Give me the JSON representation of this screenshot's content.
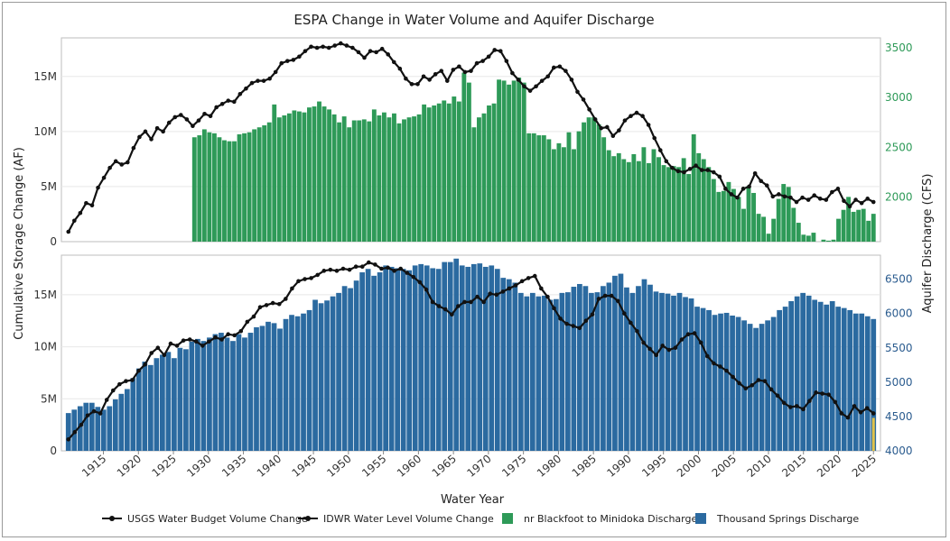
{
  "chart_data": {
    "type": "bar",
    "title": "ESPA Change in Water Volume and Aquifer Discharge",
    "xlabel": "Water Year",
    "ylabel_left": "Cumulative Storage Change (AF)",
    "ylabel_right": "Aquifer Discharge (CFS)",
    "x_tick_labels": [
      "1915",
      "1920",
      "1925",
      "1930",
      "1935",
      "1940",
      "1945",
      "1950",
      "1955",
      "1960",
      "1965",
      "1970",
      "1975",
      "1980",
      "1985",
      "1990",
      "1995",
      "2000",
      "2005",
      "2010",
      "2015",
      "2020",
      "2025"
    ],
    "xlim": [
      1909,
      2026
    ],
    "legend_position": "bottom",
    "legend": [
      {
        "label": "USGS Water Budget Volume Change",
        "kind": "line-marker",
        "color": "#111111"
      },
      {
        "label": "IDWR Water Level Volume Change",
        "kind": "line-marker",
        "color": "#111111"
      },
      {
        "label": "nr Blackfoot to Minidoka Discharge",
        "kind": "bar",
        "color": "#2e9a58"
      },
      {
        "label": "Thousand Springs Discharge",
        "kind": "bar",
        "color": "#2b6aa0"
      }
    ],
    "panels": [
      {
        "id": "top",
        "left_axis": {
          "ylim": [
            0,
            18.5
          ],
          "unit": "M",
          "ticks": [
            {
              "v": 0,
              "label": "0"
            },
            {
              "v": 5,
              "label": "5M"
            },
            {
              "v": 10,
              "label": "10M"
            },
            {
              "v": 15,
              "label": "15M"
            }
          ]
        },
        "right_axis": {
          "ylim": [
            1550,
            3600
          ],
          "ticks": [
            {
              "v": 2000,
              "label": "2000"
            },
            {
              "v": 2500,
              "label": "2500"
            },
            {
              "v": 3000,
              "label": "3000"
            },
            {
              "v": 3500,
              "label": "3500"
            }
          ]
        },
        "bars": {
          "name": "nr Blackfoot to Minidoka Discharge",
          "color": "#2e9a58",
          "x_start": 1928,
          "values": [
            2600,
            2620,
            2680,
            2650,
            2640,
            2600,
            2570,
            2560,
            2560,
            2630,
            2640,
            2650,
            2680,
            2700,
            2720,
            2750,
            2930,
            2800,
            2820,
            2840,
            2870,
            2860,
            2850,
            2900,
            2910,
            2960,
            2910,
            2880,
            2830,
            2750,
            2810,
            2700,
            2770,
            2770,
            2780,
            2760,
            2880,
            2820,
            2850,
            2800,
            2840,
            2740,
            2780,
            2800,
            2810,
            2830,
            2930,
            2900,
            2920,
            2940,
            2970,
            2940,
            3010,
            2960,
            3250,
            3150,
            2700,
            2800,
            2840,
            2920,
            2940,
            3180,
            3170,
            3130,
            3170,
            3200,
            3150,
            2640,
            2640,
            2620,
            2620,
            2580,
            2480,
            2540,
            2500,
            2650,
            2480,
            2660,
            2750,
            2800,
            2800,
            2730,
            2600,
            2470,
            2410,
            2440,
            2380,
            2350,
            2430,
            2360,
            2500,
            2340,
            2480,
            2400,
            2320,
            2300,
            2310,
            2300,
            2390,
            2230,
            2630,
            2440,
            2380,
            2300,
            2180,
            2050,
            2060,
            2150,
            2080,
            2000,
            1880,
            2110,
            2040,
            1830,
            1800,
            1630,
            1780,
            1980,
            2130,
            2100,
            1890,
            1740,
            1620,
            1610,
            1640,
            1550,
            1570,
            1560,
            1570,
            1780,
            1870,
            2000,
            1850,
            1870,
            1880,
            1760,
            1830
          ],
          "values_note": "annual discharge in CFS, read approximately"
        },
        "series": [
          {
            "name": "USGS Water Budget Volume Change",
            "x_start": 1910,
            "values": [
              0.9,
              1.9,
              2.6,
              3.5,
              3.3,
              4.9,
              5.8,
              6.7,
              7.3,
              7.0,
              7.2,
              8.5,
              9.5,
              10.0,
              9.3,
              10.3,
              10.0,
              10.8,
              11.3,
              11.5,
              11.1,
              10.5,
              11.0,
              11.6,
              11.4,
              12.2,
              12.5,
              12.8,
              12.7,
              13.4,
              13.9,
              14.4,
              14.6,
              14.6,
              14.8,
              15.4,
              16.2,
              16.4,
              16.5,
              16.8,
              17.3,
              17.7,
              17.6,
              17.7,
              17.6,
              17.8,
              18.0,
              17.8,
              17.6,
              17.2,
              16.7,
              17.3,
              17.2,
              17.5,
              17.0,
              16.3,
              15.7,
              14.8,
              14.3,
              14.3,
              15.0,
              14.7,
              15.2,
              15.5,
              14.6,
              15.6,
              15.9,
              15.4,
              15.5,
              16.2,
              16.4,
              16.8,
              17.4,
              17.3,
              16.4,
              15.3,
              14.7,
              14.1,
              13.7,
              14.1,
              14.6,
              15.0,
              15.8,
              15.9,
              15.5,
              14.7,
              13.6,
              12.9,
              12.0,
              11.1,
              10.3,
              10.4,
              9.6,
              10.1,
              11.0,
              11.4,
              11.7,
              11.4,
              10.6,
              9.4,
              8.3,
              7.3,
              6.7,
              6.4,
              6.3,
              6.6,
              6.9,
              6.5,
              6.5,
              6.3,
              5.9,
              4.8,
              4.3,
              4.0,
              4.8,
              5.0,
              6.2,
              5.5,
              5.1,
              4.1,
              4.3,
              4.1,
              4.0,
              3.6,
              4.0,
              3.8,
              4.2,
              3.9,
              3.8,
              4.5,
              4.8,
              3.7,
              3.2,
              3.8,
              3.5,
              3.9,
              3.6
            ],
            "values_note": "cumulative storage change in millions of AF, read approximately"
          }
        ]
      },
      {
        "id": "bottom",
        "left_axis": {
          "ylim": [
            0,
            18.8
          ],
          "unit": "M",
          "ticks": [
            {
              "v": 0,
              "label": "0"
            },
            {
              "v": 5,
              "label": "5M"
            },
            {
              "v": 10,
              "label": "10M"
            },
            {
              "v": 15,
              "label": "15M"
            }
          ]
        },
        "right_axis": {
          "ylim": [
            4000,
            6850
          ],
          "ticks": [
            {
              "v": 4000,
              "label": "4000"
            },
            {
              "v": 4500,
              "label": "4500"
            },
            {
              "v": 5000,
              "label": "5000"
            },
            {
              "v": 5500,
              "label": "5500"
            },
            {
              "v": 6000,
              "label": "6000"
            },
            {
              "v": 6500,
              "label": "6500"
            }
          ]
        },
        "bars": {
          "name": "Thousand Springs Discharge",
          "color": "#2b6aa0",
          "x_start": 1910,
          "values": [
            4550,
            4600,
            4650,
            4700,
            4700,
            4640,
            4600,
            4650,
            4750,
            4830,
            4900,
            5060,
            5200,
            5300,
            5250,
            5350,
            5400,
            5440,
            5350,
            5500,
            5480,
            5590,
            5630,
            5600,
            5650,
            5700,
            5720,
            5650,
            5600,
            5700,
            5650,
            5720,
            5800,
            5820,
            5880,
            5860,
            5780,
            5920,
            5980,
            5960,
            6000,
            6050,
            6200,
            6150,
            6190,
            6250,
            6300,
            6400,
            6370,
            6480,
            6600,
            6650,
            6550,
            6600,
            6700,
            6680,
            6660,
            6650,
            6630,
            6700,
            6720,
            6700,
            6660,
            6650,
            6750,
            6750,
            6800,
            6700,
            6680,
            6720,
            6730,
            6680,
            6700,
            6650,
            6520,
            6500,
            6450,
            6300,
            6250,
            6300,
            6250,
            6260,
            6200,
            6210,
            6300,
            6310,
            6390,
            6430,
            6400,
            6300,
            6310,
            6400,
            6450,
            6550,
            6580,
            6380,
            6300,
            6400,
            6500,
            6420,
            6320,
            6300,
            6290,
            6260,
            6300,
            6240,
            6220,
            6100,
            6080,
            6050,
            5980,
            6000,
            6010,
            5970,
            5950,
            5900,
            5850,
            5790,
            5850,
            5900,
            5950,
            6050,
            6100,
            6180,
            6250,
            6300,
            6260,
            6200,
            6170,
            6130,
            6180,
            6100,
            6080,
            6050,
            6000,
            6000,
            5960,
            5920
          ],
          "values_note": "annual discharge in CFS, read approximately"
        },
        "series": [
          {
            "name": "IDWR Water Level Volume Change",
            "x_start": 1910,
            "values": [
              1.1,
              1.8,
              2.5,
              3.4,
              3.8,
              3.6,
              4.9,
              5.8,
              6.4,
              6.7,
              6.8,
              7.7,
              8.3,
              9.4,
              9.9,
              9.2,
              10.3,
              10.1,
              10.6,
              10.7,
              10.5,
              10.1,
              10.5,
              10.9,
              10.7,
              11.2,
              11.1,
              11.5,
              12.4,
              12.9,
              13.8,
              14.0,
              14.2,
              14.1,
              14.6,
              15.6,
              16.3,
              16.5,
              16.6,
              16.9,
              17.3,
              17.4,
              17.3,
              17.5,
              17.4,
              17.7,
              17.7,
              18.1,
              17.9,
              17.5,
              17.6,
              17.3,
              17.5,
              17.1,
              16.7,
              16.2,
              15.5,
              14.3,
              13.9,
              13.6,
              13.1,
              13.9,
              14.3,
              14.3,
              14.8,
              14.3,
              15.1,
              15.0,
              15.3,
              15.6,
              15.9,
              16.3,
              16.6,
              16.8,
              15.6,
              14.8,
              13.7,
              12.7,
              12.2,
              12.0,
              11.8,
              12.5,
              13.1,
              14.6,
              14.9,
              14.9,
              14.4,
              13.2,
              12.3,
              11.5,
              10.4,
              9.8,
              9.2,
              10.1,
              9.7,
              9.9,
              10.7,
              11.2,
              11.3,
              10.4,
              9.1,
              8.4,
              8.1,
              7.7,
              7.1,
              6.5,
              6.0,
              6.3,
              6.8,
              6.7,
              5.9,
              5.3,
              4.6,
              4.2,
              4.3,
              4.0,
              4.8,
              5.6,
              5.5,
              5.4,
              4.7,
              3.6,
              3.2,
              4.3,
              3.7,
              4.1,
              3.6
            ],
            "values_note": "cumulative storage change in millions of AF, read approximately"
          }
        ]
      }
    ]
  }
}
